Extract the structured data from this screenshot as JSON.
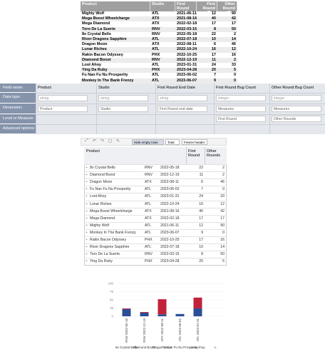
{
  "table": {
    "headers": [
      "Product",
      "Studio",
      "First Round End Date",
      "First Round Bug Count",
      "Other Round Bug Count"
    ],
    "rows": [
      [
        "Mighty Wolf",
        "ATL",
        "2021-06-11",
        12,
        90
      ],
      [
        "Mega Boost Wheelcharge",
        "ATX",
        "2021-08-16",
        40,
        42
      ],
      [
        "Mega Diamond",
        "ATX",
        "2022-02-18",
        17,
        17
      ],
      [
        "Toro De La Suerte",
        "RNV",
        "2022-03-15",
        8,
        50
      ],
      [
        "8x Crystal Bells",
        "RNV",
        "2022-05-18",
        22,
        2
      ],
      [
        "River Dragons Sapphire",
        "ATL",
        "2022-07-18",
        10,
        14
      ],
      [
        "Dragon Moon",
        "ATX",
        "2022-08-11",
        6,
        46
      ],
      [
        "Lunar Riches",
        "ATL",
        "2022-10-24",
        16,
        12
      ],
      [
        "Rakin Bacon Odyssey",
        "PHX",
        "2022-10-25",
        17,
        16
      ],
      [
        "Diamond Boost",
        "RNV",
        "2022-12-19",
        11,
        2
      ],
      [
        "Loot Ahoy",
        "ATL",
        "2023-01-31",
        24,
        33
      ],
      [
        "Ying Da Ruby",
        "PHX",
        "2023-04-28",
        20,
        5
      ],
      [
        "Fu Nan Fu Nu Prosperity",
        "ATL",
        "2023-06-02",
        7,
        0
      ],
      [
        "Monkey In The Bank Frenzy",
        "ATL",
        "2023-06-07",
        9,
        0
      ]
    ]
  },
  "fields": {
    "row_labels": [
      "Field name:",
      "Data type:",
      "Dimension:",
      "Level or Measure:",
      "Advanced options:"
    ],
    "columns": [
      {
        "name": "Product",
        "data_type": "string",
        "dimension": "Product"
      },
      {
        "name": "Studio",
        "data_type": "string",
        "dimension": "Studio"
      },
      {
        "name": "First Round End Date",
        "data_type": "string",
        "dimension": "First Round end date"
      },
      {
        "name": "First Round Bug Count",
        "data_type": "integer",
        "dimension": "Measures",
        "level": "First Round"
      },
      {
        "name": "Other Round Bug Count",
        "data_type": "integer",
        "dimension": "Measures",
        "level": "Other Rounds"
      }
    ]
  },
  "pivot": {
    "toolbar": [
      "Hide empty rows",
      "Total",
      "Freeze header"
    ],
    "headers": [
      "Product",
      "First Round",
      "Other Rounds"
    ],
    "rows": [
      [
        "8x Crystal Bells",
        "RNV",
        "2022-05-18",
        22,
        2
      ],
      [
        "Diamond Boost",
        "RNV",
        "2022-12-19",
        11,
        2
      ],
      [
        "Dragon Moon",
        "ATX",
        "2022-08-11",
        6,
        46
      ],
      [
        "Fu Nan Fu Nu Prosperity",
        "ATL",
        "2023-06-02",
        7,
        0
      ],
      [
        "Loot Ahoy",
        "ATL",
        "2023-01-31",
        24,
        33
      ],
      [
        "Lunar Riches",
        "ATL",
        "2022-10-24",
        16,
        12
      ],
      [
        "Mega Boost Wheelcharge",
        "ATX",
        "2021-08-16",
        40,
        42
      ],
      [
        "Mega Diamond",
        "ATX",
        "2022-02-18",
        17,
        17
      ],
      [
        "Mighty Wolf",
        "ATL",
        "2021-06-11",
        12,
        90
      ],
      [
        "Monkey In The Bank Frenzy",
        "ATL",
        "2023-06-07",
        9,
        0
      ],
      [
        "Rakin Bacon Odyssey",
        "PHX",
        "2022-10-25",
        17,
        16
      ],
      [
        "River Dragons Sapphire",
        "ATL",
        "2022-07-18",
        10,
        14
      ],
      [
        "Toro De La Suerte",
        "RNV",
        "2022-03-15",
        8,
        50
      ],
      [
        "Ying Da Ruby",
        "PHX",
        "2023-04-28",
        20,
        5
      ]
    ]
  },
  "chart": {
    "type": "bar",
    "stacked": true,
    "categories": [
      "8x Crystal Bells",
      "Diamond Boost",
      "Dragon Moon",
      "Fu Nan Fu Nu Prosperity",
      "Loot Ahoy",
      "L"
    ],
    "sublabels": [
      "RNV 2022-05-18",
      "RNV 2022-12-19",
      "ATX 2022-08-11",
      "ATL 2023-06-02",
      "ATL 2023-01-31",
      null
    ],
    "series": [
      {
        "color": "#2b4f96",
        "values": [
          22,
          11,
          6,
          7,
          24,
          null
        ]
      },
      {
        "color": "#c0223a",
        "values": [
          2,
          2,
          46,
          0,
          33,
          null
        ]
      }
    ],
    "ylim": [
      0,
      100
    ],
    "yticks": [
      0,
      25,
      50,
      75,
      100
    ],
    "grid": true
  }
}
